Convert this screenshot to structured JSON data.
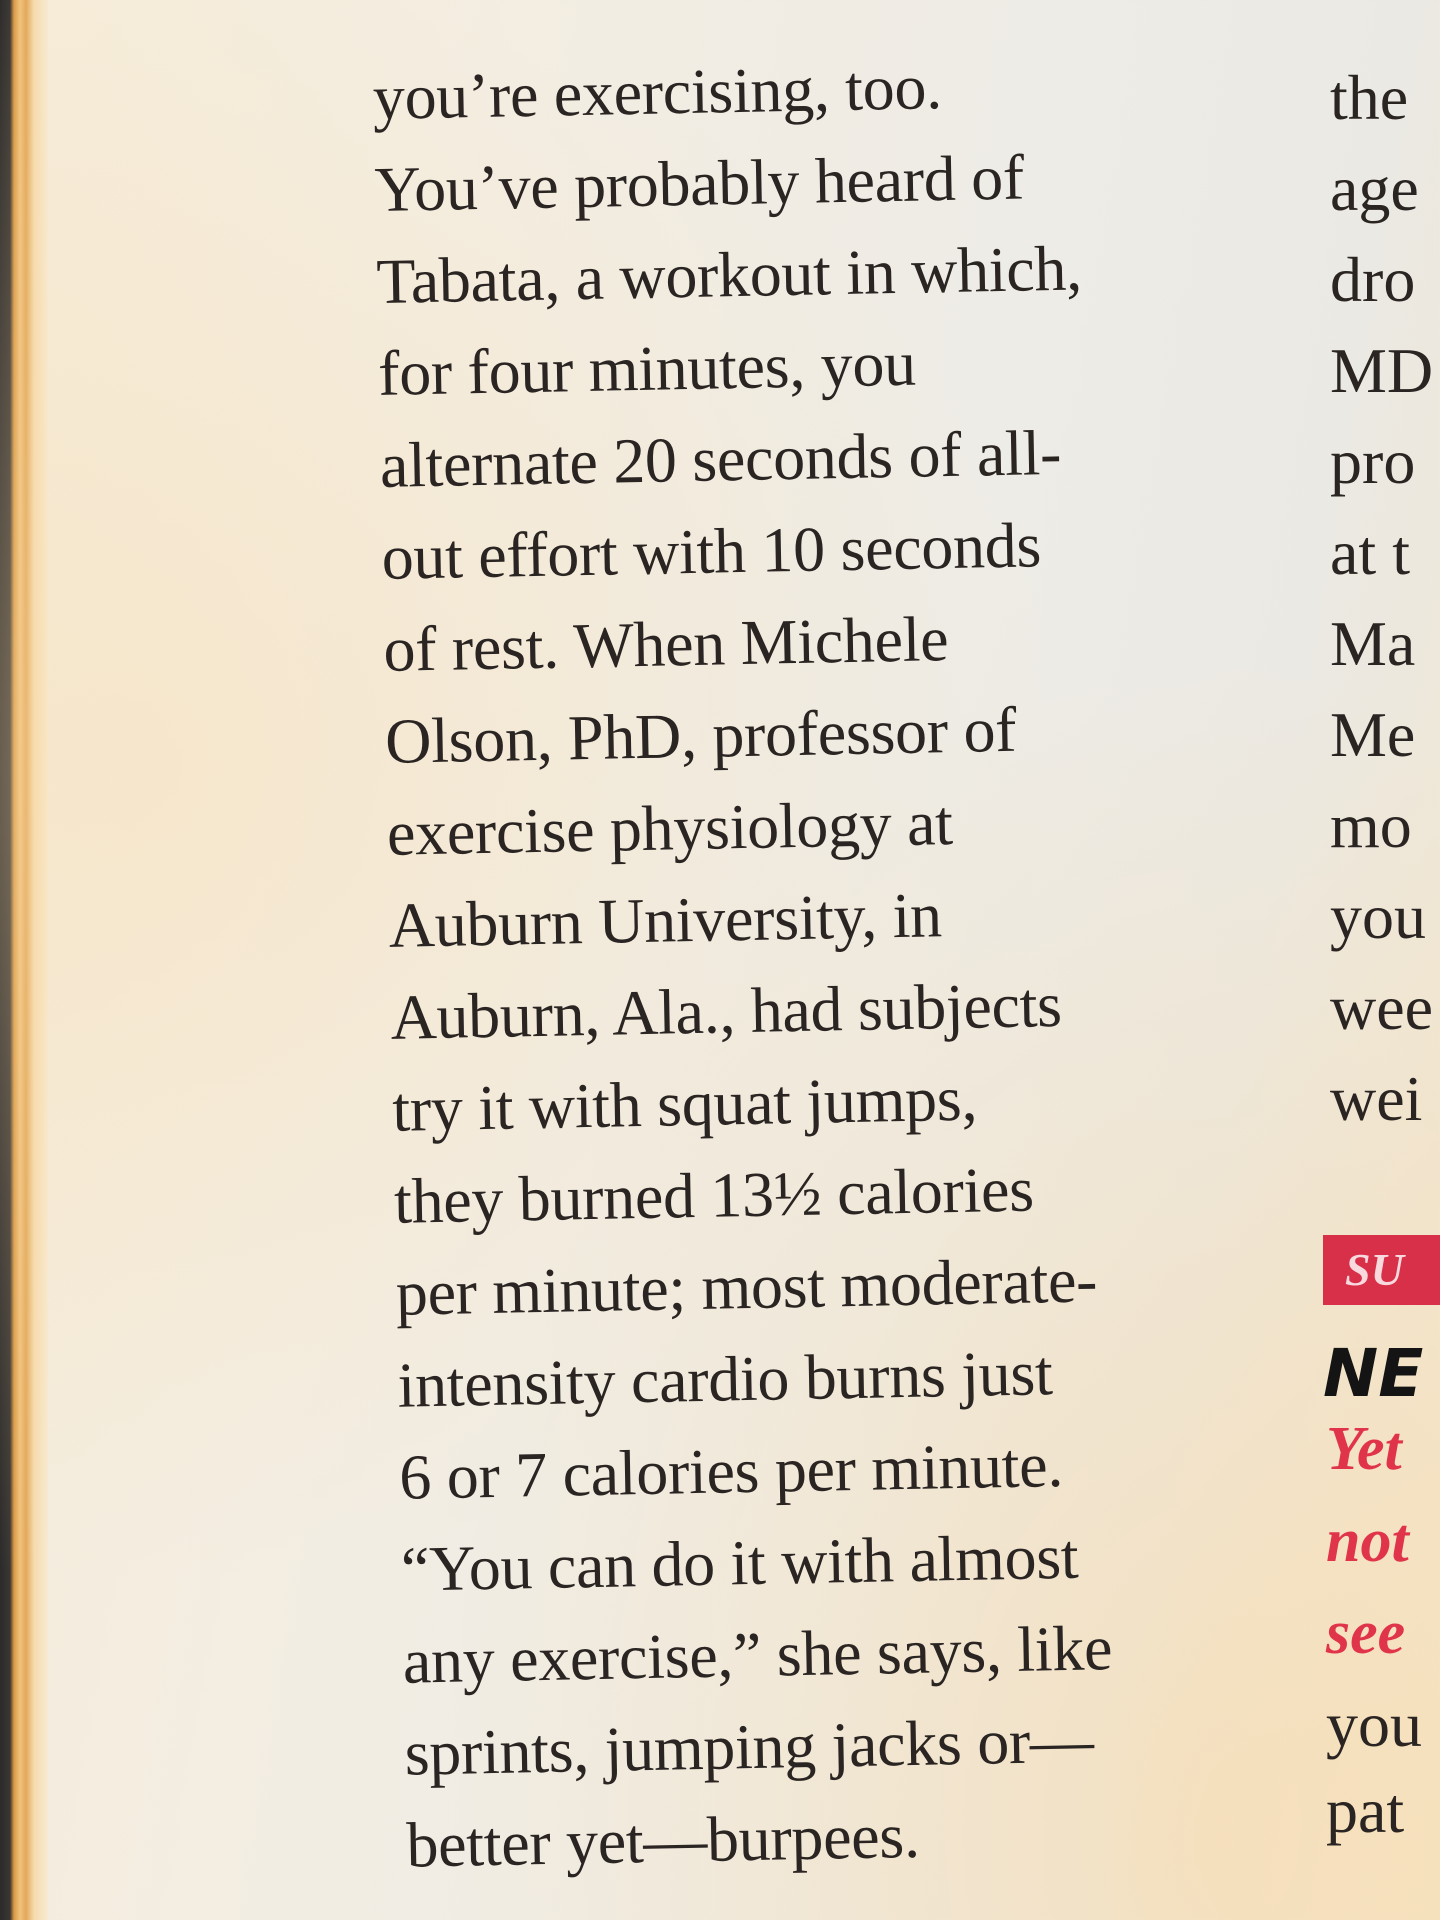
{
  "main_column": {
    "lines": [
      "you’re exercising, too.",
      "You’ve probably heard of",
      "Tabata, a workout in which,",
      "for four minutes, you",
      "alternate 20 seconds of all-",
      "out effort with 10 seconds",
      "of rest. When Michele",
      "Olson, PhD, professor of",
      "exercise physiology at",
      "Auburn University, in",
      "Auburn, Ala., had subjects",
      "try it with squat jumps,",
      "they burned 13½ calories",
      "per minute; most moderate-",
      "intensity cardio burns just",
      "6 or 7 calories per minute.",
      "“You can do it with almost",
      "any exercise,” she says, like",
      "sprints, jumping jacks or—",
      "better yet—burpees."
    ]
  },
  "right_column": {
    "lines": [
      "the",
      "age",
      "dro",
      "MD",
      "pro",
      "at t",
      "Ma",
      "Me",
      "mo",
      "you",
      "wee",
      "wei"
    ],
    "badge": "SU",
    "headline": "NE",
    "dek_lines": [
      "Yet",
      "not",
      "see"
    ],
    "body_lines": [
      "you",
      "pat"
    ]
  },
  "colors": {
    "accent_red": "#d9304a",
    "paper": "#f3ede2",
    "ink": "#2a2522"
  }
}
